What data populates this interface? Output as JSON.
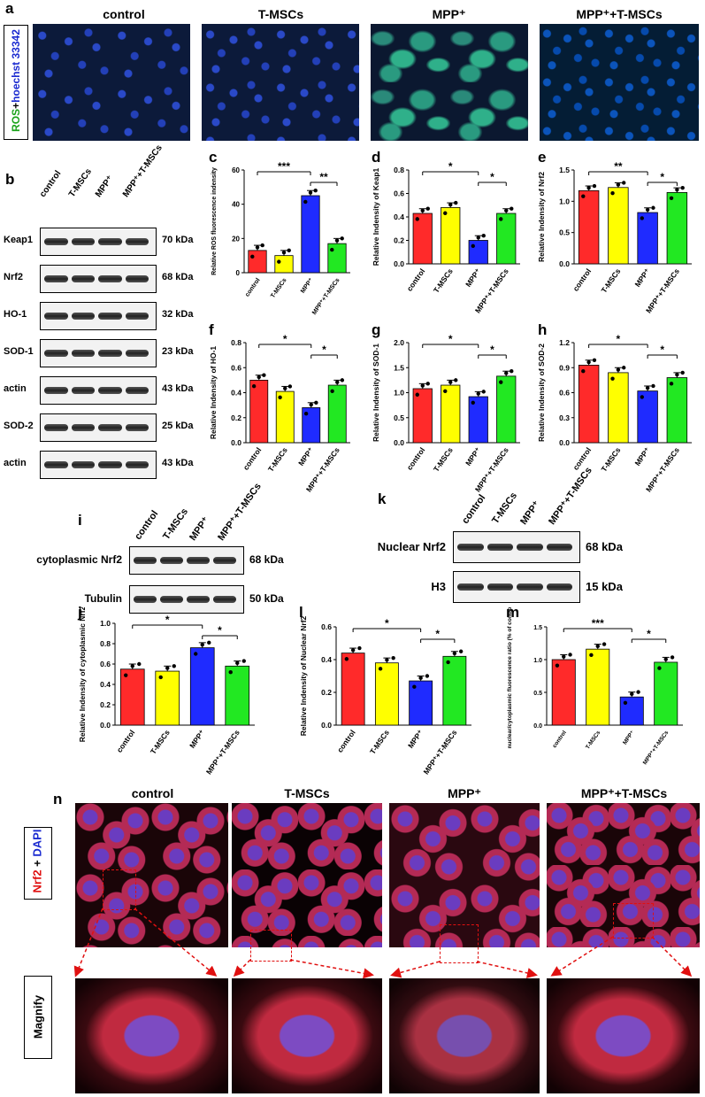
{
  "panel_letters": {
    "a": "a",
    "b": "b",
    "c": "c",
    "d": "d",
    "e": "e",
    "f": "f",
    "g": "g",
    "h": "h",
    "i": "i",
    "j": "j",
    "k": "k",
    "l": "l",
    "m": "m",
    "n": "n"
  },
  "groups": [
    "control",
    "T-MSCs",
    "MPP⁺",
    "MPP⁺+T-MSCs"
  ],
  "panel_a": {
    "side_label_ros": "ROS",
    "side_label_plus": "+",
    "side_label_hoechst": "hoechst 33342",
    "col_titles": [
      "control",
      "T-MSCs",
      "MPP⁺",
      "MPP⁺+T-MSCs"
    ]
  },
  "panel_b": {
    "lanes": [
      "control",
      "T-MSCs",
      "MPP⁺",
      "MPP⁺+T-MSCs"
    ],
    "rows": [
      {
        "label": "Keap1",
        "kda": "70 kDa"
      },
      {
        "label": "Nrf2",
        "kda": "68 kDa"
      },
      {
        "label": "HO-1",
        "kda": "32 kDa"
      },
      {
        "label": "SOD-1",
        "kda": "23 kDa"
      },
      {
        "label": "actin",
        "kda": "43 kDa"
      },
      {
        "label": "SOD-2",
        "kda": "25 kDa"
      },
      {
        "label": "actin",
        "kda": "43 kDa"
      }
    ]
  },
  "panel_i": {
    "lanes": [
      "control",
      "T-MSCs",
      "MPP⁺",
      "MPP⁺+T-MSCs"
    ],
    "rows": [
      {
        "label": "cytoplasmic Nrf2",
        "kda": "68 kDa"
      },
      {
        "label": "Tubulin",
        "kda": "50 kDa"
      }
    ]
  },
  "panel_k": {
    "lanes": [
      "control",
      "T-MSCs",
      "MPP⁺",
      "MPP⁺+T-MSCs"
    ],
    "rows": [
      {
        "label": "Nuclear Nrf2",
        "kda": "68 kDa"
      },
      {
        "label": "H3",
        "kda": "15 kDa"
      }
    ]
  },
  "panel_n": {
    "side_label_nrf2": "Nrf2",
    "side_label_plus": " + ",
    "side_label_dapi": "DAPI",
    "magnify_label": "Magnify",
    "col_titles": [
      "control",
      "T-MSCs",
      "MPP⁺",
      "MPP⁺+T-MSCs"
    ]
  },
  "colors": {
    "control": "#ff2a2a",
    "T-MSCs": "#ffff00",
    "MPP": "#1f2bff",
    "MPP+T-MSCs": "#22e822",
    "ros": "#1aa31a",
    "hoechst": "#1a2ad0",
    "arrow": "#e01010"
  },
  "chart_data": [
    {
      "id": "c",
      "type": "bar",
      "ylabel": "Relative ROS fluorescence indensity",
      "categories": [
        "control",
        "T-MSCs",
        "MPP⁺",
        "MPP⁺+T-MSCs"
      ],
      "values": [
        13,
        10,
        45,
        17
      ],
      "ylim": [
        0,
        60
      ],
      "yticks": [
        "0",
        "20",
        "40",
        "60"
      ],
      "sig": [
        {
          "from": 0,
          "to": 2,
          "label": "***"
        },
        {
          "from": 2,
          "to": 3,
          "label": "**"
        }
      ]
    },
    {
      "id": "d",
      "type": "bar",
      "ylabel": "Relative Indensity of Keap1",
      "categories": [
        "control",
        "T-MSCs",
        "MPP⁺",
        "MPP⁺+T-MSCs"
      ],
      "values": [
        0.43,
        0.48,
        0.2,
        0.43
      ],
      "ylim": [
        0,
        0.8
      ],
      "yticks": [
        "0.0",
        "0.2",
        "0.4",
        "0.6",
        "0.8"
      ],
      "sig": [
        {
          "from": 0,
          "to": 2,
          "label": "*"
        },
        {
          "from": 2,
          "to": 3,
          "label": "*"
        }
      ]
    },
    {
      "id": "e",
      "type": "bar",
      "ylabel": "Relative Indensity of Nrf2",
      "categories": [
        "control",
        "T-MSCs",
        "MPP⁺",
        "MPP⁺+T-MSCs"
      ],
      "values": [
        1.17,
        1.22,
        0.82,
        1.14
      ],
      "ylim": [
        0,
        1.5
      ],
      "yticks": [
        "0.0",
        "0.5",
        "1.0",
        "1.5"
      ],
      "sig": [
        {
          "from": 0,
          "to": 2,
          "label": "**"
        },
        {
          "from": 2,
          "to": 3,
          "label": "*"
        }
      ]
    },
    {
      "id": "f",
      "type": "bar",
      "ylabel": "Relative Indensity of HO-1",
      "categories": [
        "control",
        "T-MSCs",
        "MPP⁺",
        "MPP⁺+T-MSCs"
      ],
      "values": [
        0.5,
        0.41,
        0.28,
        0.46
      ],
      "ylim": [
        0,
        0.8
      ],
      "yticks": [
        "0.0",
        "0.2",
        "0.4",
        "0.6",
        "0.8"
      ],
      "sig": [
        {
          "from": 0,
          "to": 2,
          "label": "*"
        },
        {
          "from": 2,
          "to": 3,
          "label": "*"
        }
      ]
    },
    {
      "id": "g",
      "type": "bar",
      "ylabel": "Relative Indensity of SOD-1",
      "categories": [
        "control",
        "T-MSCs",
        "MPP⁺",
        "MPP⁺+T-MSCs"
      ],
      "values": [
        1.08,
        1.15,
        0.92,
        1.33
      ],
      "ylim": [
        0,
        2.0
      ],
      "yticks": [
        "0.0",
        "0.5",
        "1.0",
        "1.5",
        "2.0"
      ],
      "sig": [
        {
          "from": 0,
          "to": 2,
          "label": "*"
        },
        {
          "from": 2,
          "to": 3,
          "label": "*"
        }
      ]
    },
    {
      "id": "h",
      "type": "bar",
      "ylabel": "Relative Indensity of SOD-2",
      "categories": [
        "control",
        "T-MSCs",
        "MPP⁺",
        "MPP⁺+T-MSCs"
      ],
      "values": [
        0.93,
        0.84,
        0.62,
        0.78
      ],
      "ylim": [
        0,
        1.2
      ],
      "yticks": [
        "0.0",
        "0.3",
        "0.6",
        "0.9",
        "1.2"
      ],
      "sig": [
        {
          "from": 0,
          "to": 2,
          "label": "*"
        },
        {
          "from": 2,
          "to": 3,
          "label": "*"
        }
      ]
    },
    {
      "id": "j",
      "type": "bar",
      "ylabel": "Relative Indensity of cytoplasmic Nrf2",
      "categories": [
        "control",
        "T-MSCs",
        "MPP⁺",
        "MPP⁺+T-MSCs"
      ],
      "values": [
        0.55,
        0.53,
        0.76,
        0.58
      ],
      "ylim": [
        0,
        1.0
      ],
      "yticks": [
        "0.0",
        "0.2",
        "0.4",
        "0.6",
        "0.8",
        "1.0"
      ],
      "sig": [
        {
          "from": 0,
          "to": 2,
          "label": "*"
        },
        {
          "from": 2,
          "to": 3,
          "label": "*"
        }
      ]
    },
    {
      "id": "l",
      "type": "bar",
      "ylabel": "Relative Indensity of Nuclear Nrf2",
      "categories": [
        "control",
        "T-MSCs",
        "MPP⁺",
        "MPP⁺+T-MSCs"
      ],
      "values": [
        0.44,
        0.38,
        0.27,
        0.42
      ],
      "ylim": [
        0,
        0.6
      ],
      "yticks": [
        "0.0",
        "0.2",
        "0.4",
        "0.6"
      ],
      "sig": [
        {
          "from": 0,
          "to": 2,
          "label": "*"
        },
        {
          "from": 2,
          "to": 3,
          "label": "*"
        }
      ]
    },
    {
      "id": "m",
      "type": "bar",
      "ylabel": "nuclear/cytoplasmic fluorescence ratio (% of control)",
      "categories": [
        "control",
        "T-MSCs",
        "MPP⁺",
        "MPP⁺+T-MSCs"
      ],
      "values": [
        1.0,
        1.16,
        0.43,
        0.96
      ],
      "ylim": [
        0,
        1.5
      ],
      "yticks": [
        "0.0",
        "0.5",
        "1.0",
        "1.5"
      ],
      "sig": [
        {
          "from": 0,
          "to": 2,
          "label": "***"
        },
        {
          "from": 2,
          "to": 3,
          "label": "*"
        }
      ]
    }
  ]
}
